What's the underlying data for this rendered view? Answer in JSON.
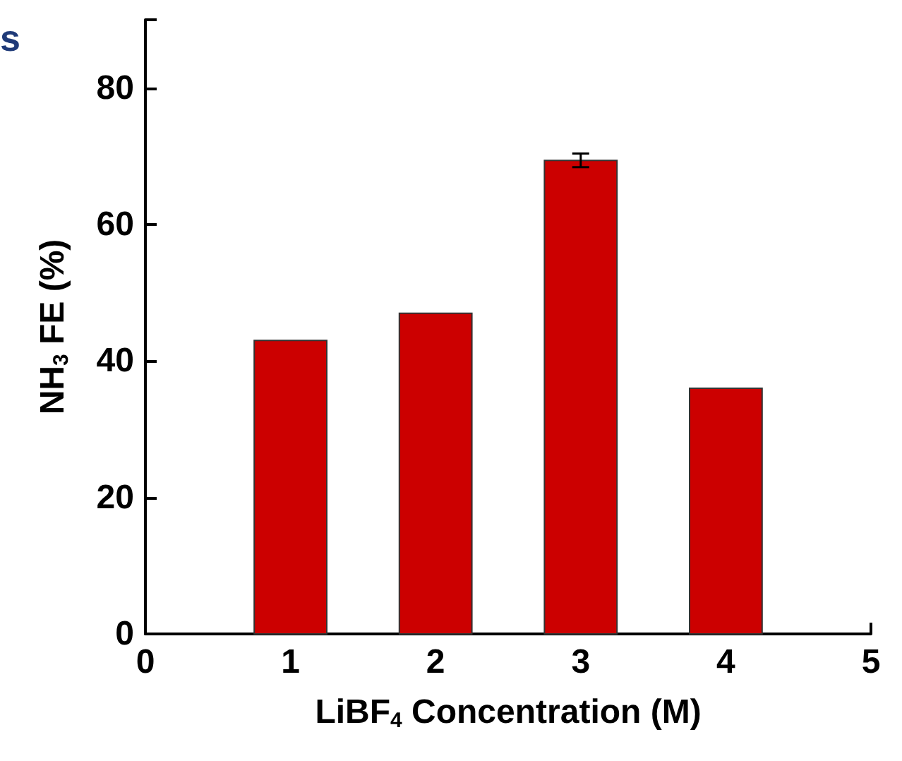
{
  "chart_data": {
    "type": "bar",
    "xlabel": "LiBF$_{4}$ Concentration (M)",
    "ylabel": "NH$_{3}$ FE (%)",
    "x": [
      1,
      2,
      3,
      4
    ],
    "values": [
      43,
      47,
      69.4,
      36
    ],
    "errors": [
      null,
      null,
      1,
      null
    ],
    "color": "#cc0000",
    "xlim": [
      0,
      5
    ],
    "xticks": [
      0,
      1,
      2,
      3,
      4,
      5
    ],
    "ylim": [
      0,
      90
    ],
    "yticks": [
      0,
      20,
      40,
      60,
      80
    ],
    "grid": false,
    "legend": false,
    "annotations": [
      "s"
    ]
  }
}
